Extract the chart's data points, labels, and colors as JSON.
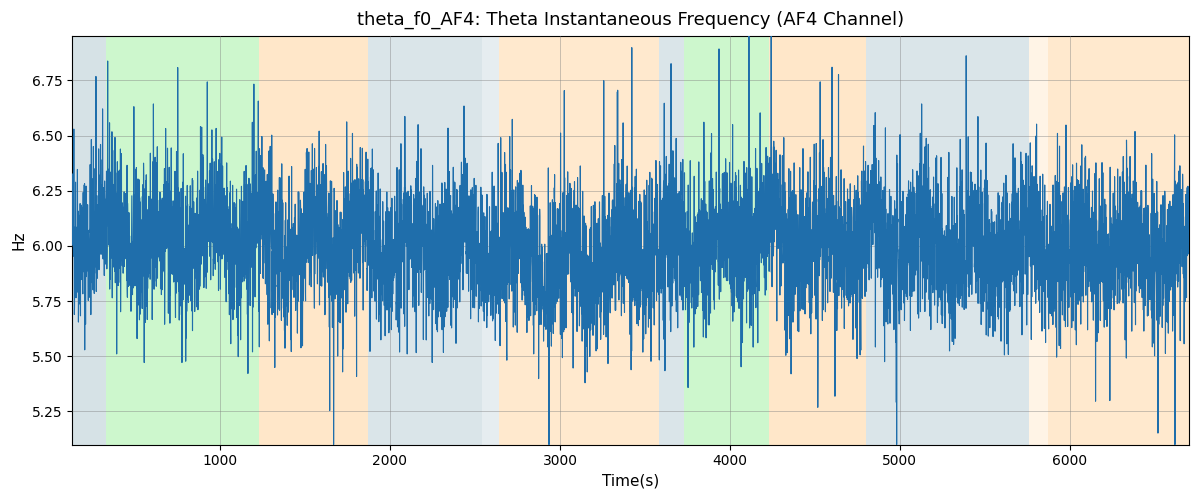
{
  "title": "theta_f0_AF4: Theta Instantaneous Frequency (AF4 Channel)",
  "xlabel": "Time(s)",
  "ylabel": "Hz",
  "xlim": [
    130,
    6700
  ],
  "ylim": [
    5.1,
    6.95
  ],
  "yticks": [
    5.25,
    5.5,
    5.75,
    6.0,
    6.25,
    6.5,
    6.75
  ],
  "xticks": [
    1000,
    2000,
    3000,
    4000,
    5000,
    6000
  ],
  "line_color": "#1f6eab",
  "line_width": 0.8,
  "bg_bands": [
    {
      "xmin": 130,
      "xmax": 330,
      "color": "#aec6cf",
      "alpha": 0.5
    },
    {
      "xmin": 330,
      "xmax": 1230,
      "color": "#90ee90",
      "alpha": 0.45
    },
    {
      "xmin": 1230,
      "xmax": 1870,
      "color": "#ffd59e",
      "alpha": 0.55
    },
    {
      "xmin": 1870,
      "xmax": 2540,
      "color": "#aec6cf",
      "alpha": 0.45
    },
    {
      "xmin": 2540,
      "xmax": 2640,
      "color": "#aec6cf",
      "alpha": 0.3
    },
    {
      "xmin": 2640,
      "xmax": 3580,
      "color": "#ffd59e",
      "alpha": 0.5
    },
    {
      "xmin": 3580,
      "xmax": 3730,
      "color": "#aec6cf",
      "alpha": 0.45
    },
    {
      "xmin": 3730,
      "xmax": 4230,
      "color": "#90ee90",
      "alpha": 0.45
    },
    {
      "xmin": 4230,
      "xmax": 4800,
      "color": "#ffd59e",
      "alpha": 0.55
    },
    {
      "xmin": 4800,
      "xmax": 5760,
      "color": "#aec6cf",
      "alpha": 0.45
    },
    {
      "xmin": 5760,
      "xmax": 5870,
      "color": "#ffd59e",
      "alpha": 0.25
    },
    {
      "xmin": 5870,
      "xmax": 6700,
      "color": "#ffd59e",
      "alpha": 0.5
    }
  ],
  "seed": 42,
  "n_points": 6570,
  "freq_mean": 6.0,
  "freq_std": 0.18
}
